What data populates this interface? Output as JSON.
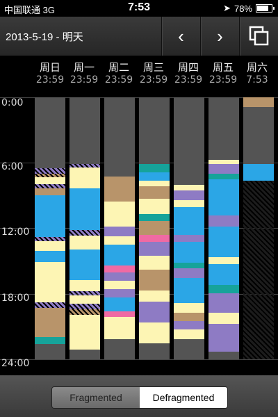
{
  "status": {
    "carrier": "中国联通 3G",
    "time": "7:53",
    "battery": "78%",
    "battery_level": 0.78
  },
  "toolbar": {
    "title": "2013-5-19 - 明天",
    "prev_icon": "chevron-left-icon",
    "next_icon": "chevron-right-icon",
    "copy_icon": "copy-icon"
  },
  "days": [
    {
      "name": "周日",
      "time": "23:59"
    },
    {
      "name": "周一",
      "time": "23:59"
    },
    {
      "name": "周二",
      "time": "23:59"
    },
    {
      "name": "周三",
      "time": "23:59"
    },
    {
      "name": "周四",
      "time": "23:59"
    },
    {
      "name": "周五",
      "time": "23:59"
    },
    {
      "name": "周六",
      "time": "7:53"
    }
  ],
  "time_labels": [
    "0:00",
    "6:00",
    "12:00",
    "18:00",
    "24:00"
  ],
  "colors": {
    "yellow": "#fdf5b4",
    "blue": "#2ba6e6",
    "purple": "#8e7bc4",
    "brown": "#b8946a",
    "teal": "#16a39a",
    "pink": "#f06aa3",
    "gray": "#545454",
    "dark": "#2a2a2a"
  },
  "segment_control": {
    "options": [
      "Fragmented",
      "Defragmented"
    ],
    "selected": "Defragmented"
  }
}
